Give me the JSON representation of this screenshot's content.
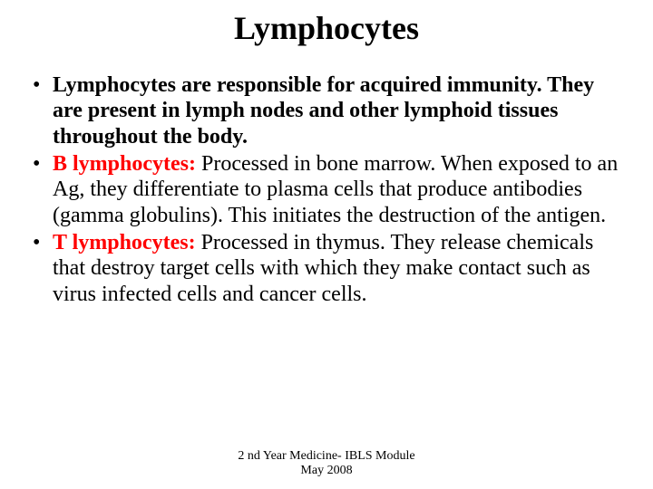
{
  "title": {
    "text": "Lymphocytes",
    "fontsize": 36,
    "color": "#000000",
    "bold": true
  },
  "body": {
    "fontsize": 24,
    "lineheight": 1.18,
    "bullets": [
      {
        "lead_red": "",
        "bold_lead": "Lymphocytes are responsible for acquired immunity. They are present in lymph nodes and other lymphoid tissues throughout the body.",
        "rest": ""
      },
      {
        "lead_red": "B lymphocytes:",
        "bold_lead": "",
        "rest": " Processed in bone marrow. When exposed to an Ag, they differentiate to plasma cells that produce antibodies (gamma globulins). This initiates the destruction of the antigen."
      },
      {
        "lead_red": "T lymphocytes:",
        "bold_lead": "",
        "rest": " Processed in thymus. They release chemicals that destroy target cells with which they make contact such as virus infected cells and cancer cells."
      }
    ]
  },
  "footer": {
    "line1": "2 nd Year Medicine- IBLS Module",
    "line2": "May 2008",
    "fontsize": 14
  },
  "colors": {
    "background": "#ffffff",
    "text": "#000000",
    "red": "#ff0000"
  }
}
